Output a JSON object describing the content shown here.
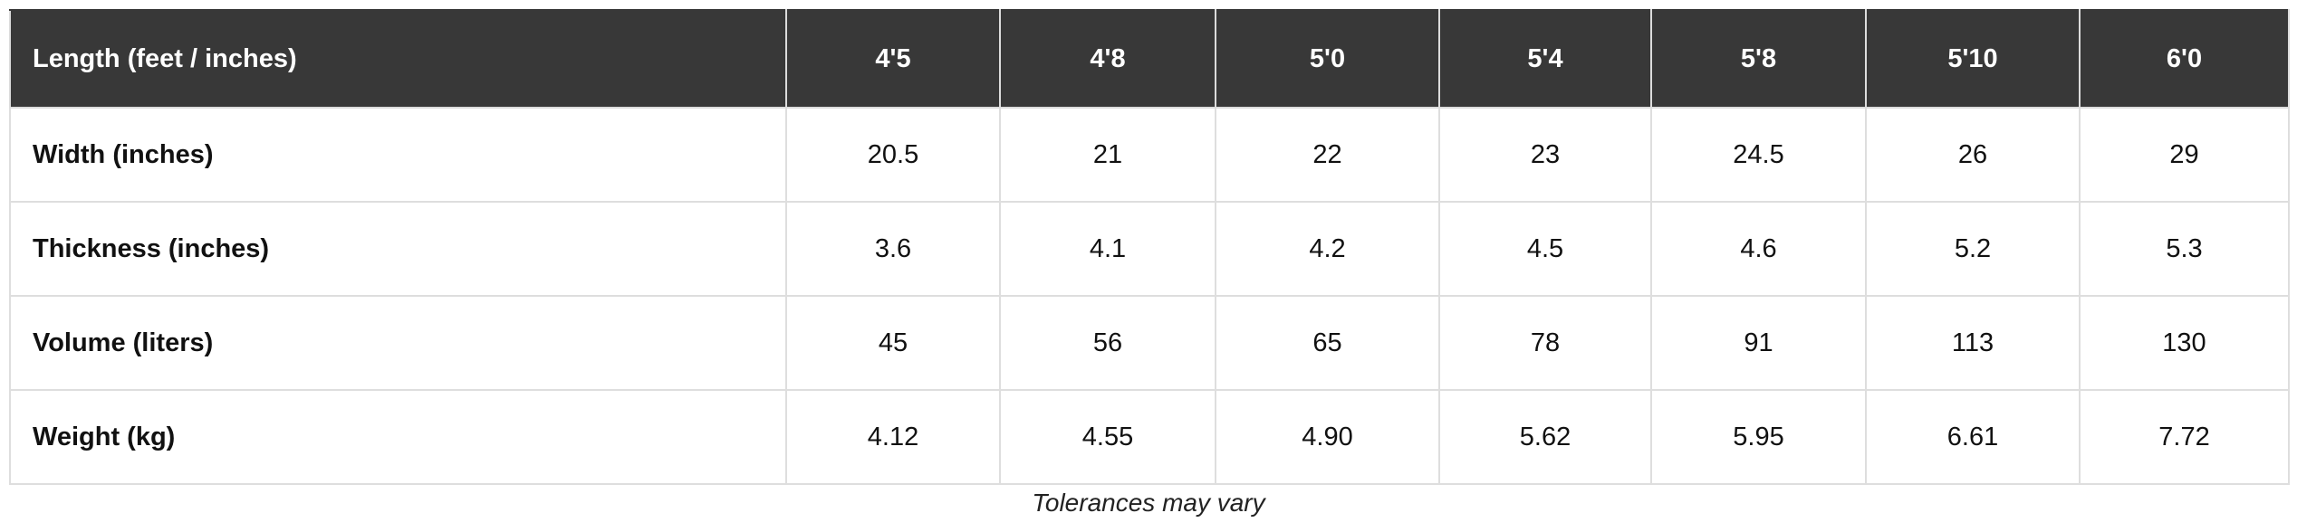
{
  "table": {
    "header": [
      "Length (feet / inches)",
      "4'5",
      "4'8",
      "5'0",
      "5'4",
      "5'8",
      "5'10",
      "6'0"
    ],
    "rows": [
      [
        "Width (inches)",
        "20.5",
        "21",
        "22",
        "23",
        "24.5",
        "26",
        "29"
      ],
      [
        "Thickness (inches)",
        "3.6",
        "4.1",
        "4.2",
        "4.5",
        "4.6",
        "5.2",
        "5.3"
      ],
      [
        "Volume (liters)",
        "45",
        "56",
        "65",
        "78",
        "91",
        "113",
        "130"
      ],
      [
        "Weight (kg)",
        "4.12",
        "4.55",
        "4.90",
        "5.62",
        "5.95",
        "6.61",
        "7.72"
      ]
    ]
  },
  "caption": "Tolerances may vary"
}
